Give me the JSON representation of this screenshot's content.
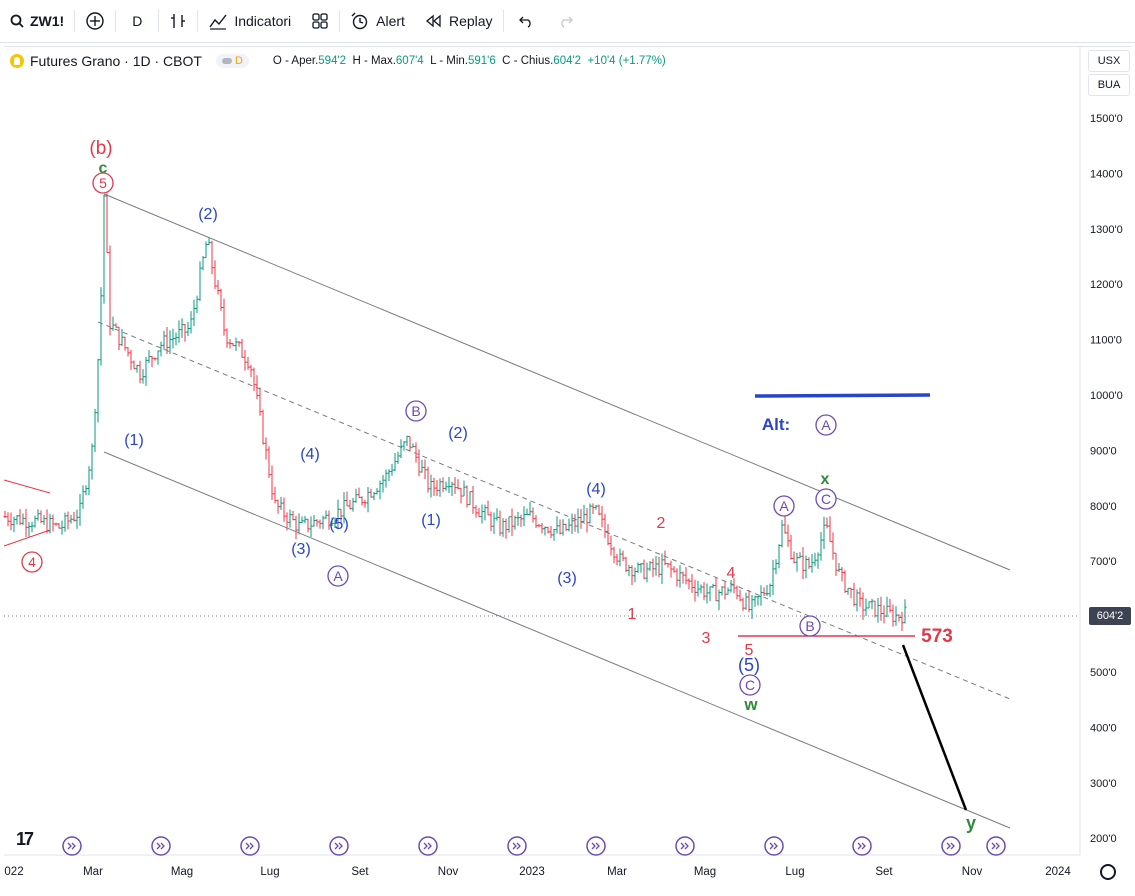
{
  "toolbar": {
    "symbol": "ZW1!",
    "interval": "D",
    "indicators_label": "Indicatori",
    "alert_label": "Alert",
    "replay_label": "Replay"
  },
  "legend": {
    "title": "Futures Grano · 1D · CBOT",
    "badge": "D",
    "o_label": "O - Aper.",
    "o_val": "594'2",
    "h_label": "H - Max.",
    "h_val": "607'4",
    "l_label": "L - Min.",
    "l_val": "591'6",
    "c_label": "C - Chius.",
    "c_val": "604'2",
    "change": "+10'4 (+1.77%)"
  },
  "scale_buttons": {
    "currency": "USX",
    "unit": "BUA"
  },
  "y_axis": {
    "ticks": [
      "1500'0",
      "1400'0",
      "1300'0",
      "1200'0",
      "1100'0",
      "1000'0",
      "900'0",
      "800'0",
      "700'0",
      "600'0",
      "500'0",
      "400'0",
      "300'0",
      "200'0"
    ]
  },
  "x_axis": {
    "ticks": [
      "022",
      "Mar",
      "Mag",
      "Lug",
      "Set",
      "Nov",
      "2023",
      "Mar",
      "Mag",
      "Lug",
      "Set",
      "Nov",
      "2024"
    ]
  },
  "last_price": "604'2",
  "annotations": {
    "level_573": "573",
    "alt": "Alt:",
    "b_paren": "(b)",
    "c_small": "c",
    "x": "x",
    "y": "y",
    "w": "w",
    "A": "A",
    "B": "B",
    "C": "C",
    "n1": "(1)",
    "n2": "(2)",
    "n3": "(3)",
    "n4": "(4)",
    "n5": "(5)",
    "r1": "1",
    "r2": "2",
    "r3": "3",
    "r4": "4",
    "r5": "5"
  },
  "colors": {
    "blue": "#2a44c9",
    "red": "#e03a4a",
    "purple": "#6c4bb0",
    "green": "#2e8b3a",
    "candle_up": "#089981",
    "candle_down": "#f23645"
  }
}
